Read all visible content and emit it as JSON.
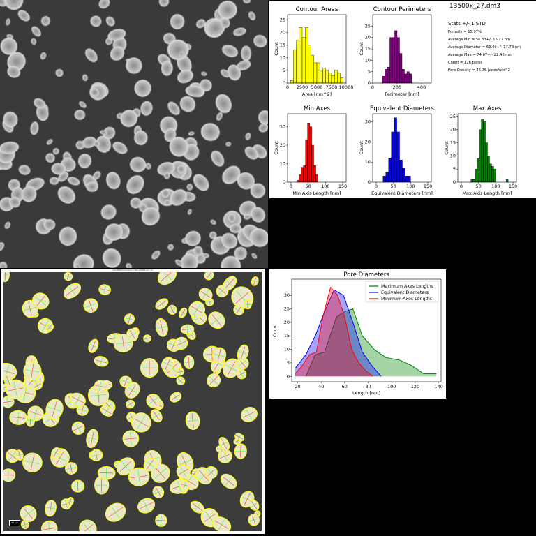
{
  "file_name": "13500x_27.dm3",
  "stats": {
    "header": "Stats +/- 1 STD",
    "porosity": "Porosity  = 15.97%",
    "avg_min": "Average Min = 56.33+/- 15.27 nm",
    "avg_diameter": "Average Diameter = 63.49+/- 17.78 nm",
    "avg_max": "Average Max = 74.67+/- 22.46 nm",
    "count": "Count = 126 pores",
    "density": "Pore Density = 46.76 pores/um^2"
  },
  "contour_title": "Identified Contours (300-20000 px^2)",
  "scale_bar": "50 nm",
  "colors": {
    "yellow": "#ffff00",
    "purple": "#800080",
    "red": "#ff0000",
    "blue": "#0000ff",
    "green": "#008000"
  },
  "chart_data": [
    {
      "type": "bar",
      "id": "areas",
      "title": "Contour Areas",
      "xlabel": "Area [nm^2]",
      "ylabel": "Count",
      "color": "#ffff00",
      "xlim": [
        0,
        10000
      ],
      "ylim": [
        0,
        27
      ],
      "xticks": [
        0,
        2500,
        5000,
        7500,
        10000
      ],
      "xtick_labels": [
        "0",
        "2500",
        "5000",
        "7500",
        "10000"
      ],
      "yticks": [
        0,
        5,
        10,
        15,
        20,
        25
      ],
      "ytick_labels": [
        "0",
        "5",
        "10",
        "15",
        "20",
        "25"
      ],
      "bin_start": 500,
      "bin_width": 500,
      "values": [
        1,
        13,
        17,
        22,
        18,
        22,
        15,
        11,
        8,
        8,
        5,
        6,
        5,
        4,
        3,
        5,
        4,
        2
      ]
    },
    {
      "type": "bar",
      "id": "perimeters",
      "title": "Contour Perimeters",
      "xlabel": "Perimeter [nm]",
      "ylabel": "Count",
      "color": "#800080",
      "xlim": [
        0,
        480
      ],
      "ylim": [
        0,
        30
      ],
      "xticks": [
        0,
        200,
        400
      ],
      "xtick_labels": [
        "0",
        "200",
        "400"
      ],
      "yticks": [
        0,
        5,
        10,
        15,
        20,
        25
      ],
      "ytick_labels": [
        "0",
        "5",
        "10",
        "15",
        "20",
        "25"
      ],
      "bin_start": 80,
      "bin_width": 20,
      "values": [
        3,
        6,
        7,
        20,
        20,
        23,
        20,
        13,
        6,
        4,
        5,
        4
      ]
    },
    {
      "type": "bar",
      "id": "min_axes",
      "title": "Min Axes",
      "xlabel": "Min Axis Length [nm]",
      "ylabel": "Count",
      "color": "#ff0000",
      "xlim": [
        -10,
        160
      ],
      "ylim": [
        0,
        37
      ],
      "xticks": [
        0,
        50,
        100,
        150
      ],
      "xtick_labels": [
        "0",
        "50",
        "100",
        "150"
      ],
      "yticks": [
        0,
        10,
        20,
        30
      ],
      "ytick_labels": [
        "0",
        "10",
        "20",
        "30"
      ],
      "bin_start": 18,
      "bin_width": 6,
      "values": [
        1,
        4,
        8,
        9,
        23,
        32,
        30,
        20,
        9,
        4
      ]
    },
    {
      "type": "bar",
      "id": "equiv_diam",
      "title": "Equivalent Diameters",
      "xlabel": "Equivalent Diameters [nm]",
      "ylabel": "Count",
      "color": "#0000ff",
      "xlim": [
        -10,
        160
      ],
      "ylim": [
        0,
        34
      ],
      "xticks": [
        0,
        50,
        100,
        150
      ],
      "xtick_labels": [
        "0",
        "50",
        "100",
        "150"
      ],
      "yticks": [
        0,
        10,
        20,
        30
      ],
      "ytick_labels": [
        "0",
        "10",
        "20",
        "30"
      ],
      "bin_start": 20,
      "bin_width": 8,
      "values": [
        3,
        5,
        12,
        25,
        32,
        25,
        11,
        7,
        3,
        3
      ]
    },
    {
      "type": "bar",
      "id": "max_axes",
      "title": "Max Axes",
      "xlabel": "Max Axis Length [nm]",
      "ylabel": "Count",
      "color": "#008000",
      "xlim": [
        -10,
        160
      ],
      "ylim": [
        0,
        26
      ],
      "xticks": [
        0,
        50,
        100,
        150
      ],
      "xtick_labels": [
        "0",
        "50",
        "100",
        "150"
      ],
      "yticks": [
        0,
        5,
        10,
        15,
        20,
        25
      ],
      "ytick_labels": [
        "0",
        "5",
        "10",
        "15",
        "20",
        "25"
      ],
      "bin_start": 28,
      "bin_width": 6,
      "values": [
        1,
        1,
        5,
        9,
        20,
        24,
        23,
        15,
        10,
        7,
        6,
        5,
        0,
        0,
        0,
        0,
        0,
        1
      ]
    },
    {
      "type": "area",
      "id": "pore_diameters",
      "title": "Pore Diameters",
      "xlabel": "Length [nm]",
      "ylabel": "Count",
      "xlim": [
        15,
        142
      ],
      "ylim": [
        -2,
        36
      ],
      "xticks": [
        20,
        40,
        60,
        80,
        100,
        120,
        140
      ],
      "xtick_labels": [
        "20",
        "40",
        "60",
        "80",
        "100",
        "120",
        "140"
      ],
      "yticks": [
        0,
        5,
        10,
        15,
        20,
        25,
        30
      ],
      "ytick_labels": [
        "0",
        "5",
        "10",
        "15",
        "20",
        "25",
        "30"
      ],
      "legend_position": "top-right",
      "series": [
        {
          "name": "Maximum Axes Lengths",
          "color": "#008000",
          "x": [
            27,
            35,
            43,
            53,
            60,
            67,
            75,
            85,
            95,
            107,
            117,
            127,
            138
          ],
          "y": [
            0,
            8,
            9,
            22,
            24,
            25,
            15,
            10,
            7,
            6,
            4,
            1,
            1
          ]
        },
        {
          "name": "Equivalent Diameters",
          "color": "#0000ff",
          "x": [
            18,
            27,
            35,
            43,
            51,
            59,
            67,
            75,
            83,
            91
          ],
          "y": [
            3,
            8,
            15,
            24,
            32,
            30,
            20,
            9,
            4,
            0
          ]
        },
        {
          "name": "Minimum Axes Lengths",
          "color": "#ff0000",
          "x": [
            18,
            24,
            30,
            36,
            42,
            48,
            54,
            60,
            66,
            72,
            78,
            84
          ],
          "y": [
            1,
            4,
            8,
            9,
            23,
            33,
            30,
            22,
            10,
            5,
            2,
            0
          ]
        }
      ]
    }
  ]
}
